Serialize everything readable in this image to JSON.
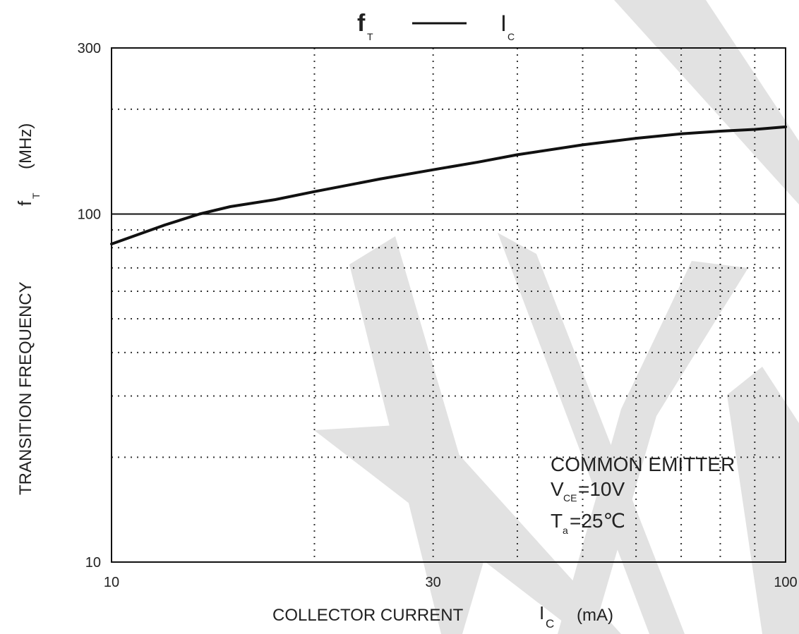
{
  "chart_data": {
    "type": "line",
    "title": {
      "main": "f",
      "main_sub": "T",
      "versus": "I",
      "versus_sub": "C"
    },
    "xlabel": {
      "text": "COLLECTOR CURRENT",
      "symbol": "I",
      "symbol_sub": "C",
      "unit": "(mA)"
    },
    "ylabel": {
      "text": "TRANSITION FREQUENCY",
      "symbol": "f",
      "symbol_sub": "T",
      "unit": "(MHz)"
    },
    "x_scale": "log",
    "y_scale": "log",
    "xlim": [
      10,
      100
    ],
    "ylim": [
      10,
      300
    ],
    "x_ticks": [
      {
        "value": 10,
        "label": "10"
      },
      {
        "value": 30,
        "label": "30"
      },
      {
        "value": 100,
        "label": "100"
      }
    ],
    "y_ticks": [
      {
        "value": 10,
        "label": "10"
      },
      {
        "value": 100,
        "label": "100"
      },
      {
        "value": 300,
        "label": "300"
      }
    ],
    "grid": true,
    "grid_style": "dotted",
    "series": [
      {
        "points": [
          [
            10,
            82
          ],
          [
            12,
            93
          ],
          [
            13.5,
            100
          ],
          [
            15,
            105
          ],
          [
            17.5,
            110
          ],
          [
            20,
            116
          ],
          [
            25,
            126
          ],
          [
            30,
            134
          ],
          [
            35,
            141
          ],
          [
            40,
            148
          ],
          [
            50,
            158
          ],
          [
            60,
            165
          ],
          [
            70,
            170
          ],
          [
            80,
            173
          ],
          [
            90,
            175
          ],
          [
            100,
            178
          ]
        ]
      }
    ],
    "annotations": {
      "condition_title": "COMMON EMITTER",
      "vce_symbol": "V",
      "vce_sub": "CE",
      "vce_value": "=10V",
      "ta_symbol": "T",
      "ta_sub": "a",
      "ta_value": "=25℃"
    },
    "colors": {
      "line": "#111111",
      "frame": "#111111",
      "grid": "#333333",
      "watermark": "#e2e2e2",
      "text": "#222222"
    }
  }
}
